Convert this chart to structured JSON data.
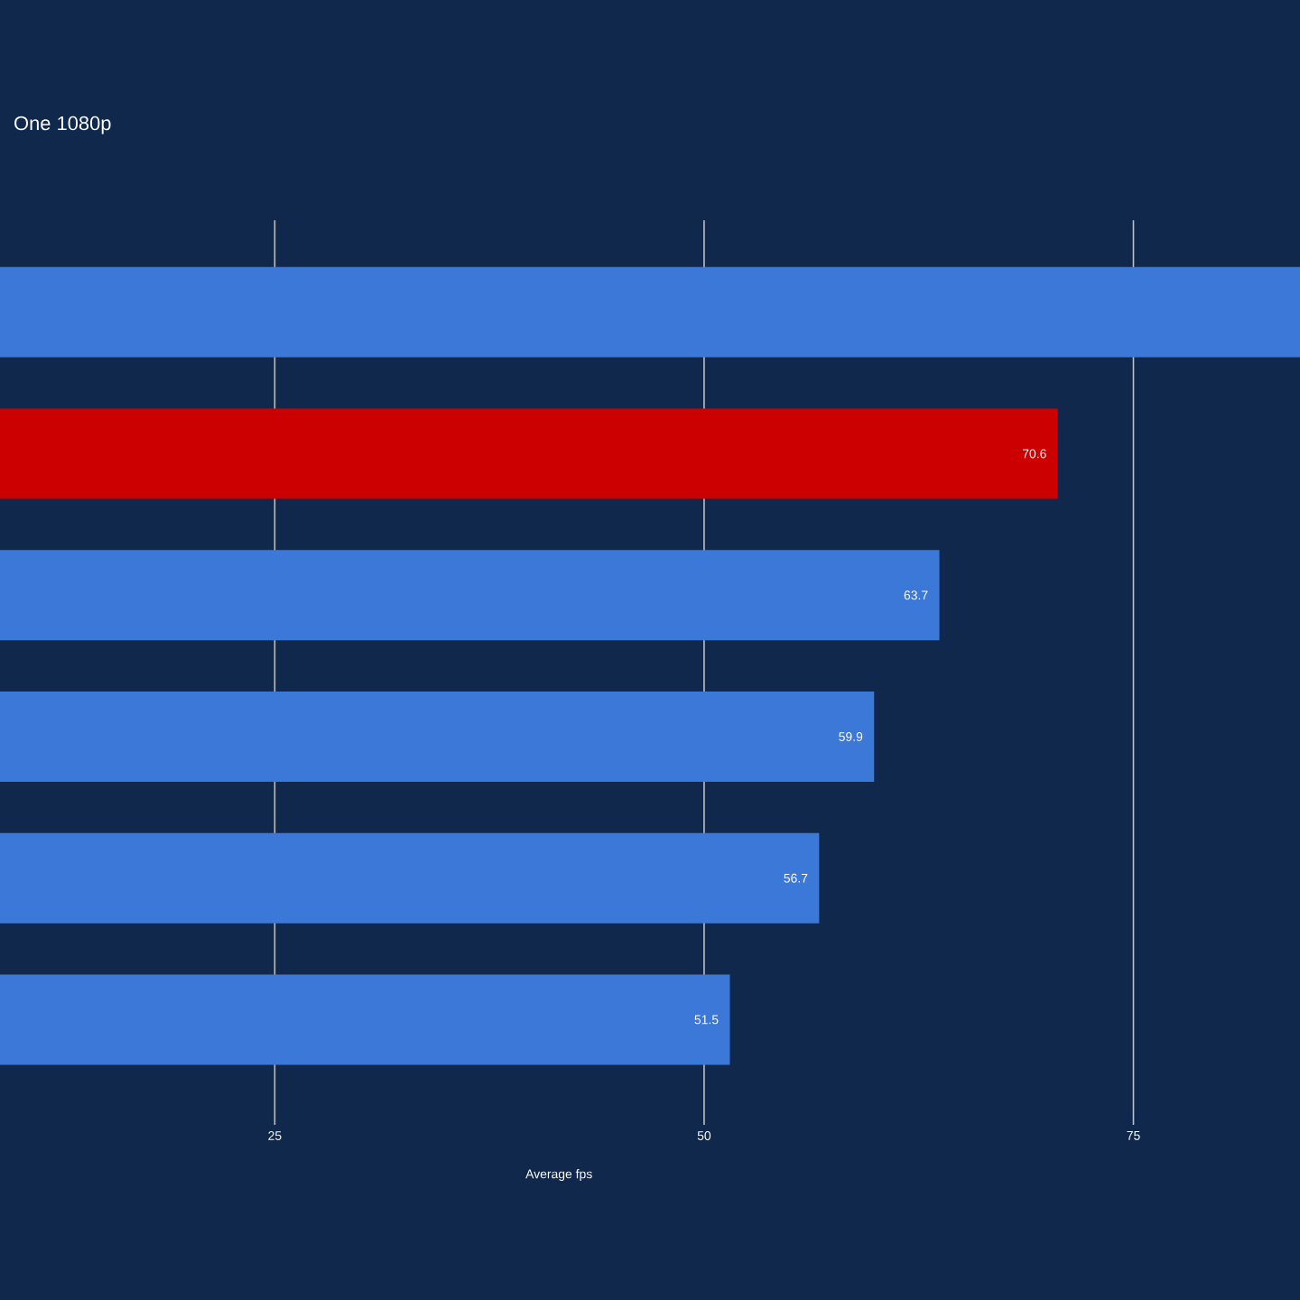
{
  "chart_data": {
    "type": "bar",
    "orientation": "horizontal",
    "title": "One 1080p",
    "xlabel": "Average fps",
    "categories": [
      null,
      null,
      null,
      null,
      null,
      null
    ],
    "values": [
      84.7,
      70.6,
      63.7,
      59.9,
      56.7,
      51.5
    ],
    "colors": [
      "#3c78d8",
      "#cc0000",
      "#3c78d8",
      "#3c78d8",
      "#3c78d8",
      "#3c78d8"
    ],
    "value_labels": [
      null,
      "70.6",
      "63.7",
      "59.9",
      "56.7",
      "51.5"
    ],
    "xlim": [
      9,
      84.7
    ],
    "xticks": [
      25,
      50,
      75
    ],
    "grid": "x"
  }
}
